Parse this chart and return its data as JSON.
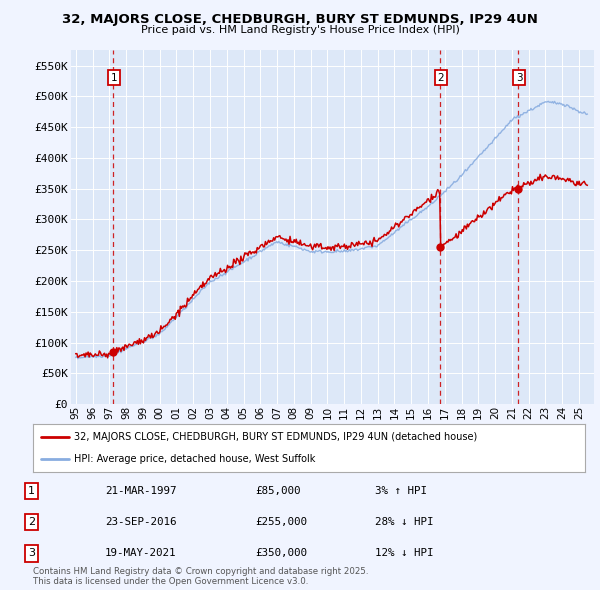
{
  "title_line1": "32, MAJORS CLOSE, CHEDBURGH, BURY ST EDMUNDS, IP29 4UN",
  "title_line2": "Price paid vs. HM Land Registry's House Price Index (HPI)",
  "background_color": "#f0f4ff",
  "plot_bg_color": "#dde8f8",
  "ylim": [
    0,
    575000
  ],
  "yticks": [
    0,
    50000,
    100000,
    150000,
    200000,
    250000,
    300000,
    350000,
    400000,
    450000,
    500000,
    550000
  ],
  "ytick_labels": [
    "£0",
    "£50K",
    "£100K",
    "£150K",
    "£200K",
    "£250K",
    "£300K",
    "£350K",
    "£400K",
    "£450K",
    "£500K",
    "£550K"
  ],
  "red_line_color": "#cc0000",
  "blue_line_color": "#89ade0",
  "dashed_line_color": "#cc0000",
  "legend_label_red": "32, MAJORS CLOSE, CHEDBURGH, BURY ST EDMUNDS, IP29 4UN (detached house)",
  "legend_label_blue": "HPI: Average price, detached house, West Suffolk",
  "footer_line1": "Contains HM Land Registry data © Crown copyright and database right 2025.",
  "footer_line2": "This data is licensed under the Open Government Licence v3.0.",
  "sale1_year": 1997.21,
  "sale1_price": 85000,
  "sale2_year": 2016.73,
  "sale2_price": 255000,
  "sale3_year": 2021.38,
  "sale3_price": 350000
}
